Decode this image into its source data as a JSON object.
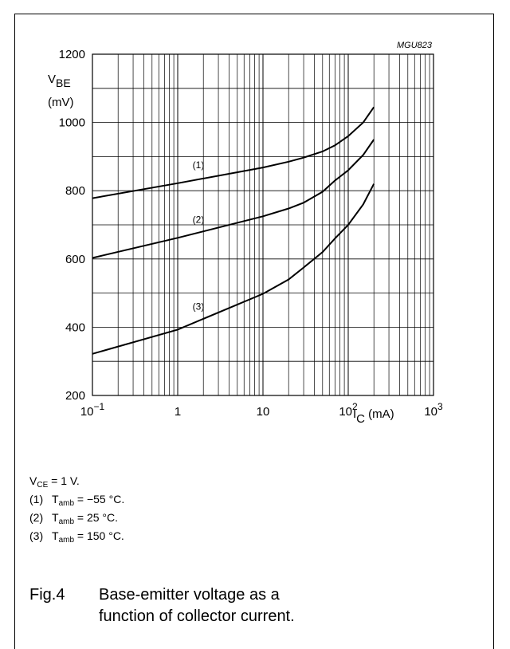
{
  "chart_data": {
    "type": "line",
    "code": "MGU823",
    "x_scale": "log",
    "xlim": [
      0.1,
      1000
    ],
    "ylim": [
      200,
      1200
    ],
    "x_tick_labels": [
      "10",
      "1",
      "10",
      "10",
      "10"
    ],
    "x_tick_exponents": [
      "−1",
      "",
      "",
      "2",
      "3"
    ],
    "y_ticks": [
      "200",
      "400",
      "600",
      "800",
      "1000",
      "1200"
    ],
    "ylabel": {
      "main": "V",
      "sub": "BE",
      "unit": "(mV)"
    },
    "xlabel": {
      "main": "I",
      "sub": "C",
      "unit": " (mA)"
    },
    "grid": true,
    "series": [
      {
        "name": "(1)",
        "points": [
          [
            0.1,
            778
          ],
          [
            1,
            822
          ],
          [
            10,
            868
          ],
          [
            20,
            885
          ],
          [
            30,
            897
          ],
          [
            50,
            915
          ],
          [
            70,
            933
          ],
          [
            100,
            960
          ],
          [
            150,
            1000
          ],
          [
            200,
            1045
          ]
        ]
      },
      {
        "name": "(2)",
        "points": [
          [
            0.1,
            603
          ],
          [
            1,
            662
          ],
          [
            10,
            725
          ],
          [
            20,
            748
          ],
          [
            30,
            765
          ],
          [
            50,
            797
          ],
          [
            70,
            830
          ],
          [
            100,
            860
          ],
          [
            150,
            905
          ],
          [
            200,
            950
          ]
        ]
      },
      {
        "name": "(3)",
        "points": [
          [
            0.1,
            322
          ],
          [
            1,
            393
          ],
          [
            10,
            498
          ],
          [
            20,
            540
          ],
          [
            30,
            575
          ],
          [
            50,
            620
          ],
          [
            70,
            660
          ],
          [
            100,
            700
          ],
          [
            150,
            760
          ],
          [
            200,
            820
          ]
        ]
      }
    ]
  },
  "notes": {
    "condition": {
      "main": "V",
      "sub": "CE",
      "rest": " = 1 V."
    },
    "items": [
      {
        "num": "(1)",
        "main": "T",
        "sub": "amb",
        "rest": " = −55 °C."
      },
      {
        "num": "(2)",
        "main": "T",
        "sub": "amb",
        "rest": " = 25 °C."
      },
      {
        "num": "(3)",
        "main": "T",
        "sub": "amb",
        "rest": " = 150 °C."
      }
    ]
  },
  "caption": {
    "number": "Fig.4",
    "text": "Base-emitter voltage as a function of collector current."
  }
}
